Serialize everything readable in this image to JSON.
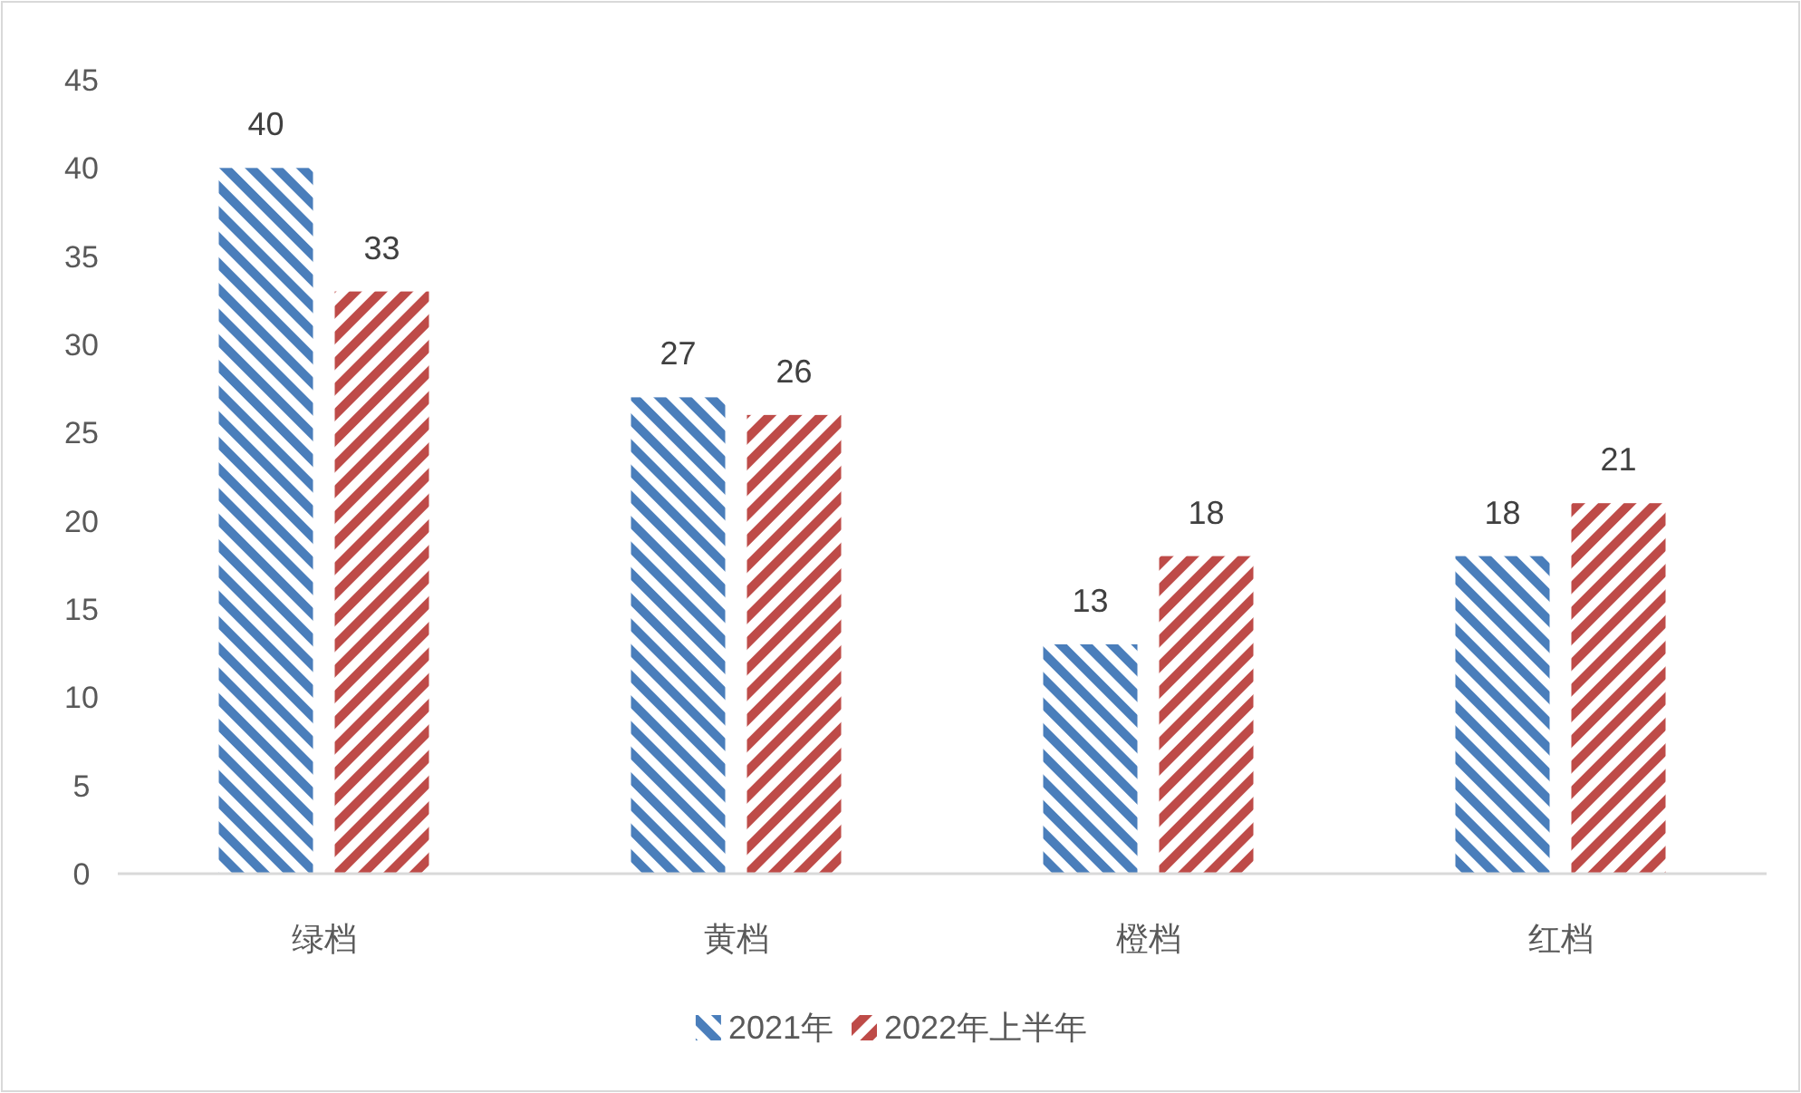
{
  "chart_data": {
    "type": "bar",
    "categories": [
      "绿档",
      "黄档",
      "橙档",
      "红档"
    ],
    "series": [
      {
        "name": "2021年",
        "color": "#4a7ebb",
        "values": [
          40,
          27,
          13,
          18
        ]
      },
      {
        "name": "2022年上半年",
        "color": "#be4b48",
        "values": [
          33,
          26,
          18,
          21
        ]
      }
    ],
    "ylim": [
      0,
      45
    ],
    "yticks": [
      0,
      5,
      10,
      15,
      20,
      25,
      30,
      35,
      40,
      45
    ],
    "data_labels": true,
    "legend": "bottom"
  }
}
